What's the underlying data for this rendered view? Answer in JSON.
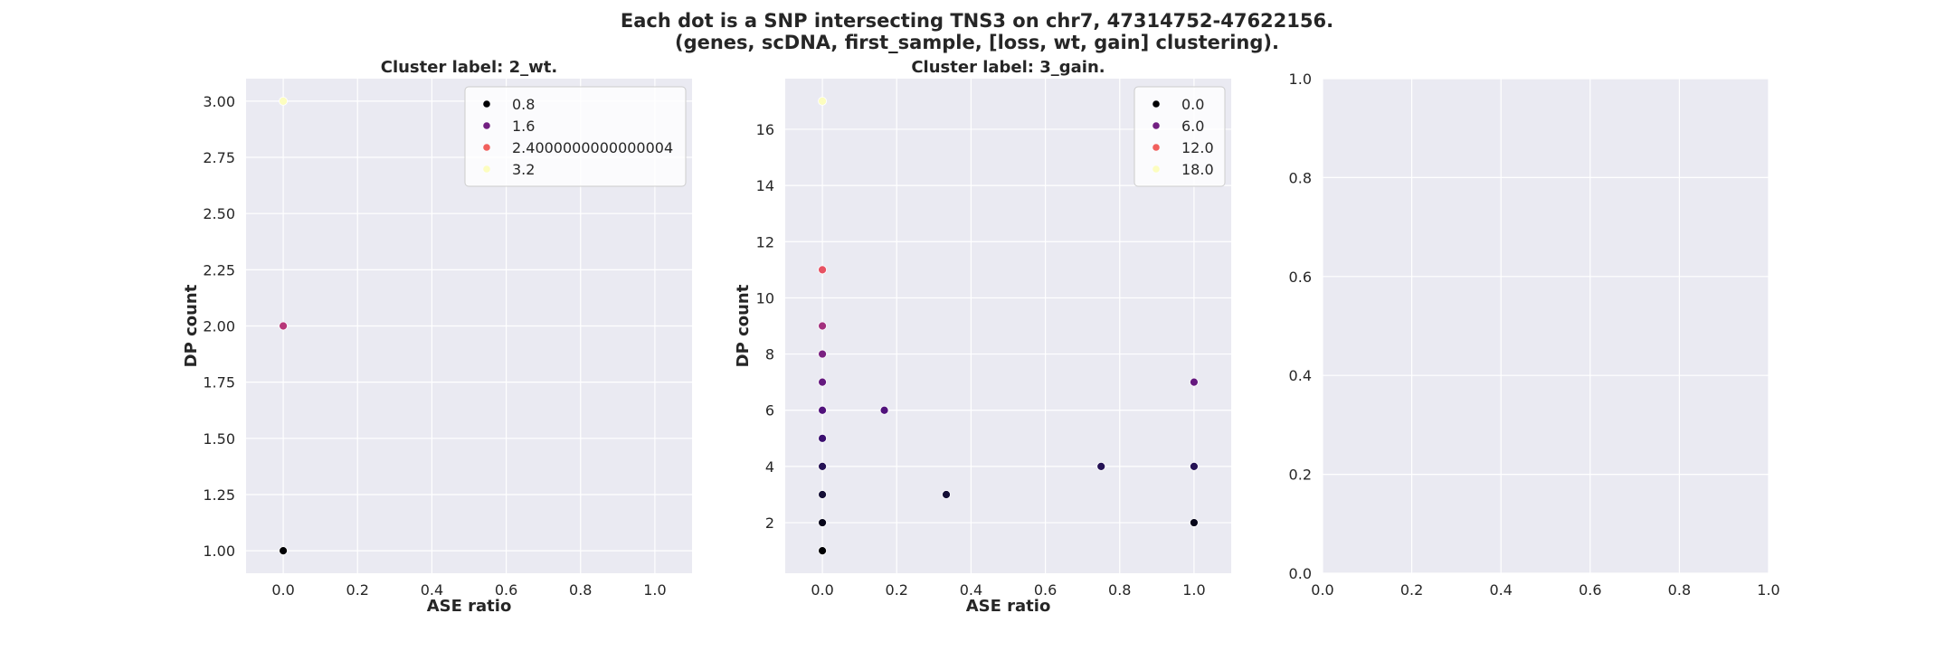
{
  "figure": {
    "title_line1": "Each dot is a SNP intersecting TNS3 on chr7, 47314752-47622156.",
    "title_line2": "(genes, scDNA, first_sample, [loss, wt, gain] clustering)."
  },
  "colors": {
    "axes_background": "#eaeaf2",
    "grid": "#ffffff",
    "text": "#262626"
  },
  "chart_data": [
    {
      "type": "scatter",
      "title": "Cluster label: 2_wt.",
      "xlabel": "ASE ratio",
      "ylabel": "DP count",
      "xlim": [
        -0.1,
        1.1
      ],
      "ylim": [
        0.9,
        3.1
      ],
      "xticks": [
        "0.0",
        "0.2",
        "0.4",
        "0.6",
        "0.8",
        "1.0"
      ],
      "yticks": [
        "1.00",
        "1.25",
        "1.50",
        "1.75",
        "2.00",
        "2.25",
        "2.50",
        "2.75",
        "3.00"
      ],
      "grid": true,
      "legend_position": "top-right",
      "legend": [
        {
          "label": "0.8",
          "color": "#000004"
        },
        {
          "label": "1.6",
          "color": "#721f81"
        },
        {
          "label": "2.4000000000000004",
          "color": "#f1605d"
        },
        {
          "label": "3.2",
          "color": "#fcfdbf"
        }
      ],
      "points": [
        {
          "x": 0.0,
          "y": 1,
          "color": "#000004"
        },
        {
          "x": 0.0,
          "y": 2,
          "color": "#b73779"
        },
        {
          "x": 0.0,
          "y": 3,
          "color": "#fcfdbf"
        }
      ]
    },
    {
      "type": "scatter",
      "title": "Cluster label: 3_gain.",
      "xlabel": "ASE ratio",
      "ylabel": "DP count",
      "xlim": [
        -0.1,
        1.1
      ],
      "ylim": [
        0.2,
        17.8
      ],
      "xticks": [
        "0.0",
        "0.2",
        "0.4",
        "0.6",
        "0.8",
        "1.0"
      ],
      "yticks": [
        "2",
        "4",
        "6",
        "8",
        "10",
        "12",
        "14",
        "16"
      ],
      "grid": true,
      "legend_position": "top-right",
      "legend": [
        {
          "label": "0.0",
          "color": "#000004"
        },
        {
          "label": "6.0",
          "color": "#721f81"
        },
        {
          "label": "12.0",
          "color": "#f1605d"
        },
        {
          "label": "18.0",
          "color": "#fcfdbf"
        }
      ],
      "points": [
        {
          "x": 0.0,
          "y": 1,
          "color": "#000004"
        },
        {
          "x": 0.0,
          "y": 2,
          "color": "#06051a"
        },
        {
          "x": 0.0,
          "y": 3,
          "color": "#140e36"
        },
        {
          "x": 0.0,
          "y": 4,
          "color": "#251255"
        },
        {
          "x": 0.0,
          "y": 5,
          "color": "#3b0f70"
        },
        {
          "x": 0.0,
          "y": 6,
          "color": "#51127c"
        },
        {
          "x": 0.0,
          "y": 7,
          "color": "#65197f"
        },
        {
          "x": 0.0,
          "y": 8,
          "color": "#7a2181"
        },
        {
          "x": 0.0,
          "y": 9,
          "color": "#a3307e"
        },
        {
          "x": 0.0,
          "y": 11,
          "color": "#e75263"
        },
        {
          "x": 0.0,
          "y": 17,
          "color": "#fcfdbf"
        },
        {
          "x": 0.1667,
          "y": 6,
          "color": "#51127c"
        },
        {
          "x": 0.3333,
          "y": 3,
          "color": "#140e36"
        },
        {
          "x": 0.75,
          "y": 4,
          "color": "#251255"
        },
        {
          "x": 1.0,
          "y": 2,
          "color": "#06051a"
        },
        {
          "x": 1.0,
          "y": 4,
          "color": "#251255"
        },
        {
          "x": 1.0,
          "y": 7,
          "color": "#65197f"
        }
      ]
    },
    {
      "type": "scatter",
      "title": "",
      "xlabel": "",
      "ylabel": "",
      "xlim": [
        0,
        1
      ],
      "ylim": [
        0,
        1
      ],
      "xticks": [
        "0.0",
        "0.2",
        "0.4",
        "0.6",
        "0.8",
        "1.0"
      ],
      "yticks": [
        "0.0",
        "0.2",
        "0.4",
        "0.6",
        "0.8",
        "1.0"
      ],
      "grid": true,
      "legend": [],
      "points": []
    }
  ]
}
